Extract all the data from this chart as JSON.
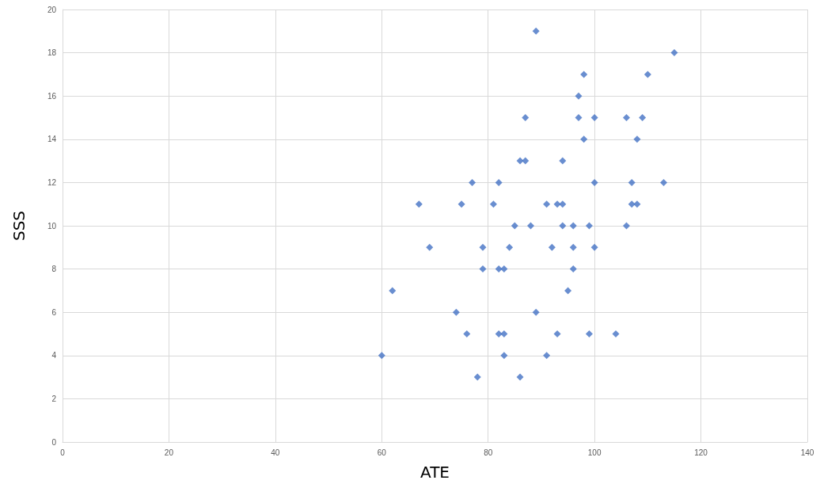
{
  "chart_data": {
    "type": "scatter",
    "xlabel": "ATE",
    "ylabel": "SSS",
    "xlim": [
      0,
      140
    ],
    "xticks": [
      0,
      20,
      40,
      60,
      80,
      100,
      120,
      140
    ],
    "ylim": [
      0,
      20
    ],
    "yticks": [
      0,
      2,
      4,
      6,
      8,
      10,
      12,
      14,
      16,
      18,
      20
    ],
    "grid": true,
    "marker": "diamond",
    "series": [
      {
        "color": "#4472c4",
        "x": [
          60,
          62,
          67,
          69,
          74,
          75,
          76,
          77,
          78,
          79,
          79,
          81,
          82,
          82,
          82,
          83,
          83,
          83,
          84,
          85,
          86,
          86,
          87,
          87,
          88,
          89,
          89,
          91,
          91,
          92,
          93,
          93,
          94,
          94,
          94,
          95,
          96,
          96,
          96,
          97,
          97,
          98,
          98,
          99,
          99,
          100,
          100,
          100,
          104,
          106,
          106,
          107,
          107,
          108,
          108,
          109,
          110,
          113,
          115
        ],
        "values": [
          4,
          7,
          11,
          9,
          6,
          11,
          5,
          12,
          3,
          9,
          8,
          11,
          12,
          8,
          5,
          8,
          5,
          4,
          9,
          10,
          13,
          3,
          13,
          15,
          10,
          19,
          6,
          11,
          4,
          9,
          11,
          5,
          13,
          11,
          10,
          7,
          10,
          9,
          8,
          16,
          15,
          17,
          14,
          10,
          5,
          15,
          12,
          9,
          5,
          15,
          10,
          12,
          11,
          14,
          11,
          15,
          17,
          12,
          18
        ]
      }
    ]
  }
}
